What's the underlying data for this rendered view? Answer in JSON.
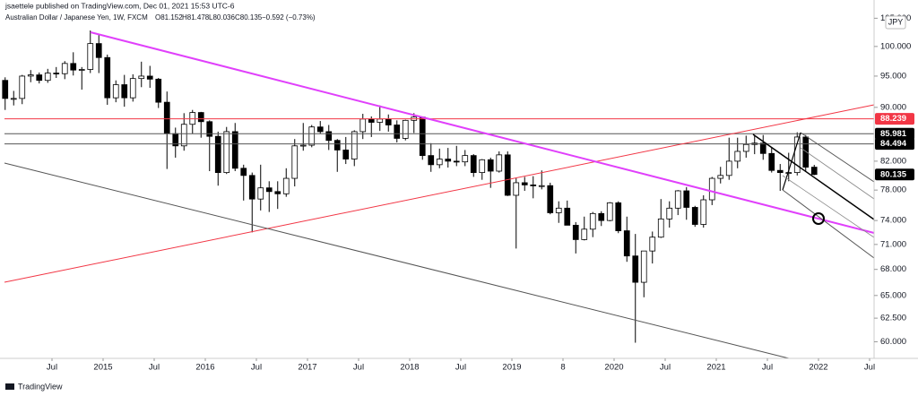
{
  "publisher": "jsaettele published on TradingView.com, Dec 01, 2021 15:53 UTC-6",
  "footer": "TradingView",
  "chart_data": {
    "type": "candlestick",
    "title": "Australian Dollar / Japanese Yen, 1W, FXCM",
    "header_open": "O81.152",
    "header_high": "H81.478",
    "header_low": "L80.036",
    "header_close": "C80.135",
    "header_change": "−0.592 (−0.73%)",
    "currency": "JPY",
    "log_scale": true,
    "up_color": "#ffffff",
    "down_color": "#000000",
    "wick_color": "#000000",
    "xlim": [
      "2014-01",
      "2022-07"
    ],
    "xticks": [
      {
        "value": "2014-07",
        "label": "Jul"
      },
      {
        "value": "2015-01",
        "label": "2015"
      },
      {
        "value": "2015-07",
        "label": "Jul"
      },
      {
        "value": "2016-01",
        "label": "2016"
      },
      {
        "value": "2016-07",
        "label": "Jul"
      },
      {
        "value": "2017-01",
        "label": "2017"
      },
      {
        "value": "2017-07",
        "label": "Jul"
      },
      {
        "value": "2018-01",
        "label": "2018"
      },
      {
        "value": "2018-07",
        "label": "Jul"
      },
      {
        "value": "2019-01",
        "label": "2019"
      },
      {
        "value": "2019-07",
        "label": "8"
      },
      {
        "value": "2020-01",
        "label": "2020"
      },
      {
        "value": "2020-07",
        "label": "Jul"
      },
      {
        "value": "2021-01",
        "label": "2021"
      },
      {
        "value": "2021-07",
        "label": "Jul"
      },
      {
        "value": "2022-01",
        "label": "2022"
      },
      {
        "value": "2022-07",
        "label": "Jul"
      }
    ],
    "ylim": [
      58.3,
      106.7
    ],
    "yticks": [
      {
        "value": 105,
        "label": "105.000"
      },
      {
        "value": 100,
        "label": "100.000"
      },
      {
        "value": 95,
        "label": "95.000"
      },
      {
        "value": 90,
        "label": "90.000"
      },
      {
        "value": 82,
        "label": "82.000"
      },
      {
        "value": 78,
        "label": "78.000"
      },
      {
        "value": 74,
        "label": "74.000"
      },
      {
        "value": 71,
        "label": "71.000"
      },
      {
        "value": 68,
        "label": "68.000"
      },
      {
        "value": 65,
        "label": "65.000"
      },
      {
        "value": 62.5,
        "label": "62.500"
      },
      {
        "value": 60,
        "label": "60.000"
      }
    ],
    "levels": [
      {
        "value": 88.239,
        "color": "#f23645",
        "line_color": "#f23645"
      },
      {
        "value": 85.981,
        "color": "#000000",
        "line_color": "#555555"
      },
      {
        "value": 84.494,
        "color": "#000000",
        "line_color": "#555555"
      },
      {
        "value": 80.135,
        "color": "#000000",
        "line_color": null
      }
    ],
    "x": [
      "2014-01",
      "2014-02",
      "2014-03",
      "2014-04",
      "2014-05",
      "2014-06",
      "2014-07",
      "2014-08",
      "2014-09",
      "2014-10",
      "2014-11",
      "2014-12",
      "2015-01",
      "2015-02",
      "2015-03",
      "2015-04",
      "2015-05",
      "2015-06",
      "2015-07",
      "2015-08",
      "2015-09",
      "2015-10",
      "2015-11",
      "2015-12",
      "2016-01",
      "2016-02",
      "2016-03",
      "2016-04",
      "2016-05",
      "2016-06",
      "2016-07",
      "2016-08",
      "2016-09",
      "2016-10",
      "2016-11",
      "2016-12",
      "2017-01",
      "2017-02",
      "2017-03",
      "2017-04",
      "2017-05",
      "2017-06",
      "2017-07",
      "2017-08",
      "2017-09",
      "2017-10",
      "2017-11",
      "2017-12",
      "2018-01",
      "2018-02",
      "2018-03",
      "2018-04",
      "2018-05",
      "2018-06",
      "2018-07",
      "2018-08",
      "2018-09",
      "2018-10",
      "2018-11",
      "2018-12",
      "2019-01",
      "2019-02",
      "2019-03",
      "2019-04",
      "2019-05",
      "2019-06",
      "2019-07",
      "2019-08",
      "2019-09",
      "2019-10",
      "2019-11",
      "2019-12",
      "2020-01",
      "2020-02",
      "2020-03",
      "2020-04",
      "2020-05",
      "2020-06",
      "2020-07",
      "2020-08",
      "2020-09",
      "2020-10",
      "2020-11",
      "2020-12",
      "2021-01",
      "2021-02",
      "2021-03",
      "2021-04",
      "2021-05",
      "2021-06",
      "2021-07",
      "2021-08",
      "2021-09",
      "2021-10",
      "2021-11",
      "2021-12"
    ],
    "ohlc": [
      [
        94.3,
        94.8,
        89.6,
        91.4
      ],
      [
        91.4,
        92.6,
        90.3,
        91.4
      ],
      [
        91.4,
        95.2,
        90.5,
        95.0
      ],
      [
        95.0,
        96.0,
        94.0,
        95.2
      ],
      [
        95.2,
        95.6,
        93.8,
        94.3
      ],
      [
        94.3,
        96.2,
        93.9,
        95.5
      ],
      [
        95.5,
        96.5,
        94.7,
        95.4
      ],
      [
        95.4,
        97.5,
        94.5,
        97.1
      ],
      [
        97.1,
        99.0,
        95.1,
        96.0
      ],
      [
        96.0,
        96.5,
        92.8,
        96.1
      ],
      [
        96.1,
        102.8,
        95.5,
        100.5
      ],
      [
        100.5,
        102.2,
        95.5,
        98.1
      ],
      [
        98.1,
        98.6,
        90.4,
        91.5
      ],
      [
        91.5,
        94.3,
        90.8,
        93.6
      ],
      [
        93.6,
        95.2,
        90.1,
        91.5
      ],
      [
        91.5,
        95.3,
        90.9,
        94.6
      ],
      [
        94.6,
        97.4,
        93.2,
        95.0
      ],
      [
        95.0,
        96.7,
        93.1,
        94.5
      ],
      [
        94.5,
        94.7,
        89.9,
        90.8
      ],
      [
        90.8,
        92.5,
        80.9,
        86.0
      ],
      [
        86.0,
        86.9,
        82.5,
        84.2
      ],
      [
        84.2,
        89.1,
        83.5,
        87.4
      ],
      [
        87.4,
        89.6,
        86.0,
        89.2
      ],
      [
        89.2,
        89.3,
        85.4,
        87.8
      ],
      [
        87.8,
        88.0,
        80.6,
        85.6
      ],
      [
        85.6,
        86.3,
        78.6,
        80.4
      ],
      [
        80.4,
        87.0,
        80.2,
        86.3
      ],
      [
        86.3,
        87.6,
        80.6,
        81.0
      ],
      [
        81.0,
        81.5,
        76.6,
        80.0
      ],
      [
        80.0,
        80.4,
        72.5,
        76.8
      ],
      [
        76.8,
        81.5,
        75.3,
        78.3
      ],
      [
        78.3,
        79.2,
        75.1,
        77.8
      ],
      [
        77.8,
        79.2,
        75.5,
        77.5
      ],
      [
        77.5,
        81.0,
        77.1,
        79.6
      ],
      [
        79.6,
        85.2,
        78.5,
        84.2
      ],
      [
        84.2,
        87.6,
        83.5,
        84.3
      ],
      [
        84.3,
        87.3,
        84.0,
        87.0
      ],
      [
        87.0,
        87.9,
        86.0,
        86.3
      ],
      [
        86.3,
        87.3,
        83.6,
        85.0
      ],
      [
        85.0,
        85.2,
        80.5,
        83.6
      ],
      [
        83.6,
        85.5,
        81.6,
        82.3
      ],
      [
        82.3,
        86.5,
        81.3,
        86.3
      ],
      [
        86.3,
        89.0,
        85.2,
        88.2
      ],
      [
        88.2,
        88.6,
        85.5,
        87.7
      ],
      [
        87.7,
        90.3,
        86.4,
        88.2
      ],
      [
        88.2,
        88.9,
        86.3,
        87.3
      ],
      [
        87.3,
        88.0,
        84.7,
        85.3
      ],
      [
        85.3,
        88.1,
        85.0,
        88.0
      ],
      [
        88.0,
        89.1,
        86.1,
        88.5
      ],
      [
        88.5,
        88.6,
        82.2,
        82.8
      ],
      [
        82.8,
        84.6,
        80.5,
        81.5
      ],
      [
        81.5,
        83.8,
        81.0,
        82.3
      ],
      [
        82.3,
        83.9,
        81.1,
        82.0
      ],
      [
        82.0,
        84.2,
        81.3,
        81.9
      ],
      [
        81.9,
        83.6,
        81.3,
        82.8
      ],
      [
        82.8,
        83.0,
        79.8,
        80.4
      ],
      [
        80.4,
        82.3,
        79.4,
        82.2
      ],
      [
        82.2,
        82.5,
        78.3,
        80.6
      ],
      [
        80.6,
        83.4,
        80.4,
        82.9
      ],
      [
        82.9,
        83.4,
        77.2,
        77.3
      ],
      [
        77.3,
        79.6,
        70.5,
        79.0
      ],
      [
        79.0,
        79.8,
        77.9,
        78.7
      ],
      [
        78.7,
        79.9,
        76.9,
        78.6
      ],
      [
        78.6,
        80.7,
        78.1,
        78.6
      ],
      [
        78.6,
        79.0,
        74.8,
        75.0
      ],
      [
        75.0,
        76.5,
        73.7,
        75.6
      ],
      [
        75.6,
        76.6,
        73.4,
        73.4
      ],
      [
        73.4,
        73.8,
        69.9,
        71.6
      ],
      [
        71.6,
        74.5,
        71.5,
        72.9
      ],
      [
        72.9,
        75.1,
        71.9,
        74.9
      ],
      [
        74.9,
        75.2,
        73.3,
        74.0
      ],
      [
        74.0,
        76.4,
        73.9,
        76.3
      ],
      [
        76.3,
        76.5,
        72.4,
        72.7
      ],
      [
        72.7,
        74.5,
        68.9,
        69.6
      ],
      [
        69.6,
        72.3,
        59.9,
        66.5
      ],
      [
        66.5,
        70.2,
        64.8,
        70.2
      ],
      [
        70.2,
        72.6,
        68.7,
        71.9
      ],
      [
        71.9,
        76.8,
        71.8,
        74.2
      ],
      [
        74.2,
        76.5,
        73.1,
        75.6
      ],
      [
        75.6,
        78.0,
        74.7,
        77.9
      ],
      [
        77.9,
        78.4,
        74.1,
        75.7
      ],
      [
        75.7,
        75.9,
        73.2,
        73.5
      ],
      [
        73.5,
        77.3,
        73.1,
        76.7
      ],
      [
        76.7,
        79.8,
        76.0,
        79.6
      ],
      [
        79.6,
        81.2,
        78.9,
        80.0
      ],
      [
        80.0,
        85.4,
        79.4,
        82.0
      ],
      [
        82.0,
        85.4,
        81.0,
        83.4
      ],
      [
        83.4,
        85.7,
        82.5,
        84.4
      ],
      [
        84.4,
        85.7,
        83.0,
        84.6
      ],
      [
        84.6,
        85.8,
        82.2,
        83.1
      ],
      [
        83.1,
        84.0,
        80.4,
        80.7
      ],
      [
        80.7,
        81.6,
        77.9,
        80.4
      ],
      [
        80.4,
        83.2,
        79.2,
        80.4
      ],
      [
        80.4,
        86.2,
        80.0,
        85.5
      ],
      [
        85.5,
        85.8,
        80.5,
        81.152
      ],
      [
        81.152,
        81.478,
        80.036,
        80.135
      ]
    ]
  }
}
